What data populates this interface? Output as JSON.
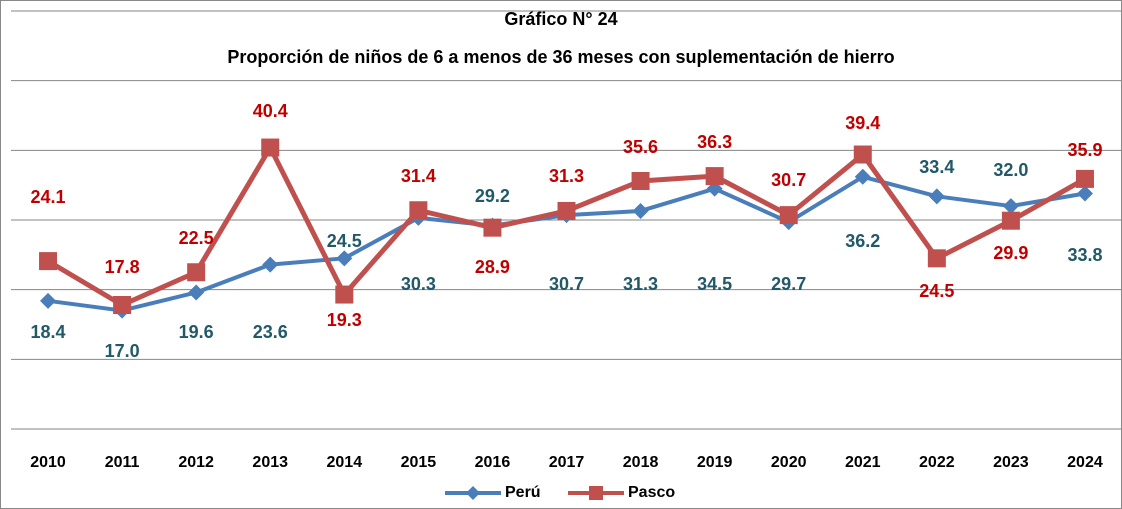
{
  "chart_data": {
    "type": "line",
    "title": "Gráfico N° 24",
    "subtitle": "Proporción de niños de 6 a menos de 36 meses con suplementación de hierro",
    "categories": [
      "2010",
      "2011",
      "2012",
      "2013",
      "2014",
      "2015",
      "2016",
      "2017",
      "2018",
      "2019",
      "2020",
      "2021",
      "2022",
      "2023",
      "2024"
    ],
    "series": [
      {
        "name": "Perú",
        "color": "#4a7ebb",
        "label_color": "#215968",
        "marker": "diamond",
        "values": [
          18.4,
          17.0,
          19.6,
          23.6,
          24.5,
          30.3,
          29.2,
          30.7,
          31.3,
          34.5,
          29.7,
          36.2,
          33.4,
          32.0,
          33.8
        ],
        "value_labels": [
          "18.4",
          "17.0",
          "19.6",
          "23.6",
          "24.5",
          "30.3",
          "29.2",
          "30.7",
          "31.3",
          "34.5",
          "29.7",
          "36.2",
          "33.4",
          "32.0",
          "33.8"
        ]
      },
      {
        "name": "Pasco",
        "color": "#c0504d",
        "label_color": "#c00000",
        "marker": "square",
        "values": [
          24.1,
          17.8,
          22.5,
          40.4,
          19.3,
          31.4,
          28.9,
          31.3,
          35.6,
          36.3,
          30.7,
          39.4,
          24.5,
          29.9,
          35.9
        ],
        "value_labels": [
          "24.1",
          "17.8",
          "22.5",
          "40.4",
          "19.3",
          "31.4",
          "28.9",
          "31.3",
          "35.6",
          "36.3",
          "30.7",
          "39.4",
          "24.5",
          "29.9",
          "35.9"
        ]
      }
    ],
    "ylim": [
      0,
      60
    ],
    "yticks": [
      0,
      10,
      20,
      30,
      40,
      50,
      60
    ],
    "grid": true,
    "legend": "bottom"
  }
}
